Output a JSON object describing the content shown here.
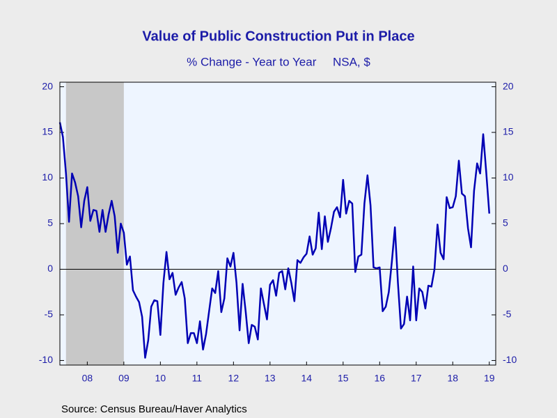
{
  "chart_data": {
    "type": "line",
    "title": "Value of Public Construction Put in Place",
    "subtitle": "% Change - Year to Year     NSA, $",
    "source": "Source:  Census Bureau/Haver Analytics",
    "x": [
      2007.75,
      2007.833,
      2007.917,
      2008,
      2008.083,
      2008.167,
      2008.25,
      2008.333,
      2008.417,
      2008.5,
      2008.583,
      2008.667,
      2008.75,
      2008.833,
      2008.917,
      2009,
      2009.083,
      2009.167,
      2009.25,
      2009.333,
      2009.417,
      2009.5,
      2009.583,
      2009.667,
      2009.75,
      2009.833,
      2009.917,
      2010,
      2010.083,
      2010.167,
      2010.25,
      2010.333,
      2010.417,
      2010.5,
      2010.583,
      2010.667,
      2010.75,
      2010.833,
      2010.917,
      2011,
      2011.083,
      2011.167,
      2011.25,
      2011.333,
      2011.417,
      2011.5,
      2011.583,
      2011.667,
      2011.75,
      2011.833,
      2011.917,
      2012,
      2012.083,
      2012.167,
      2012.25,
      2012.333,
      2012.417,
      2012.5,
      2012.583,
      2012.667,
      2012.75,
      2012.833,
      2012.917,
      2013,
      2013.083,
      2013.167,
      2013.25,
      2013.333,
      2013.417,
      2013.5,
      2013.583,
      2013.667,
      2013.75,
      2013.833,
      2013.917,
      2014,
      2014.083,
      2014.167,
      2014.25,
      2014.333,
      2014.417,
      2014.5,
      2014.583,
      2014.667,
      2014.75,
      2014.833,
      2014.917,
      2015,
      2015.083,
      2015.167,
      2015.25,
      2015.333,
      2015.417,
      2015.5,
      2015.583,
      2015.667,
      2015.75,
      2015.833,
      2015.917,
      2016,
      2016.083,
      2016.167,
      2016.25,
      2016.333,
      2016.417,
      2016.5,
      2016.583,
      2016.667,
      2016.75,
      2016.833,
      2016.917,
      2017,
      2017.083,
      2017.167,
      2017.25,
      2017.333,
      2017.417,
      2017.5,
      2017.583,
      2017.667,
      2017.75,
      2017.833,
      2017.917,
      2018,
      2018.083,
      2018.167,
      2018.25,
      2018.333,
      2018.417,
      2018.5,
      2018.583,
      2018.667,
      2018.75,
      2018.833,
      2018.917,
      2019,
      2019.083,
      2019.167,
      2019.25,
      2019.333,
      2019.417,
      2019.5
    ],
    "series": [
      {
        "color": "#0000b4",
        "values": [
          16.1,
          14.5,
          10.5,
          5.2,
          10.5,
          9.5,
          8.0,
          4.6,
          7.5,
          9.0,
          5.3,
          6.5,
          6.4,
          4.1,
          6.5,
          4.1,
          6.0,
          7.5,
          5.8,
          1.8,
          5.0,
          4.0,
          0.5,
          1.4,
          -2.3,
          -3.0,
          -3.6,
          -5.2,
          -9.7,
          -7.8,
          -4.1,
          -3.4,
          -3.5,
          -7.2,
          -1.5,
          1.9,
          -1.1,
          -0.4,
          -2.8,
          -2.0,
          -1.4,
          -3.2,
          -8.1,
          -7.0,
          -7.0,
          -8.1,
          -5.7,
          -8.8,
          -7.1,
          -4.6,
          -2.1,
          -2.6,
          -0.2,
          -4.7,
          -3.2,
          1.2,
          0.3,
          1.8,
          -1.5,
          -6.7,
          -1.6,
          -4.6,
          -8.1,
          -6.1,
          -6.3,
          -7.7,
          -2.1,
          -3.8,
          -5.5,
          -1.7,
          -1.2,
          -2.9,
          -0.4,
          -0.2,
          -2.2,
          0.1,
          -1.5,
          -3.5,
          1.0,
          0.7,
          1.3,
          1.7,
          3.6,
          1.6,
          2.3,
          6.2,
          2.2,
          5.8,
          3.0,
          4.5,
          6.3,
          6.8,
          5.7,
          9.8,
          6.1,
          7.5,
          7.2,
          -0.3,
          1.4,
          1.6,
          7.2,
          10.3,
          7.0,
          0.2,
          0.1,
          0.2,
          -4.6,
          -4.1,
          -2.5,
          0.8,
          4.6,
          -1.5,
          -6.5,
          -6.0,
          -3.0,
          -5.6,
          0.3,
          -5.6,
          -2.1,
          -2.5,
          -4.3,
          -1.8,
          -1.9,
          0.0,
          4.9,
          1.8,
          1.1,
          7.9,
          6.7,
          6.8,
          8.0,
          11.9,
          8.3,
          8.0,
          4.5,
          2.4,
          8.6,
          11.6,
          10.5,
          14.8,
          10.6,
          6.1
        ]
      }
    ],
    "shading": [
      {
        "start": 2007.917,
        "end": 2009.5,
        "color": "#c8c8c8"
      }
    ],
    "xlim": [
      2007.75,
      2019.676
    ],
    "xticks": [
      {
        "value": 2008.5,
        "label": "08"
      },
      {
        "value": 2009.5,
        "label": "09"
      },
      {
        "value": 2010.5,
        "label": "10"
      },
      {
        "value": 2011.5,
        "label": "11"
      },
      {
        "value": 2012.5,
        "label": "12"
      },
      {
        "value": 2013.5,
        "label": "13"
      },
      {
        "value": 2014.5,
        "label": "14"
      },
      {
        "value": 2015.5,
        "label": "15"
      },
      {
        "value": 2016.5,
        "label": "16"
      },
      {
        "value": 2017.5,
        "label": "17"
      },
      {
        "value": 2018.5,
        "label": "18"
      },
      {
        "value": 2019.5,
        "label": "19"
      }
    ],
    "ylim": [
      -10.5,
      20.5
    ],
    "yticks": [
      -10,
      -5,
      0,
      5,
      10,
      15,
      20
    ],
    "y2lim": [
      -10.5,
      20.5
    ],
    "y2ticks": [
      -10,
      -5,
      0,
      5,
      10,
      15,
      20
    ],
    "zero_line": true
  }
}
